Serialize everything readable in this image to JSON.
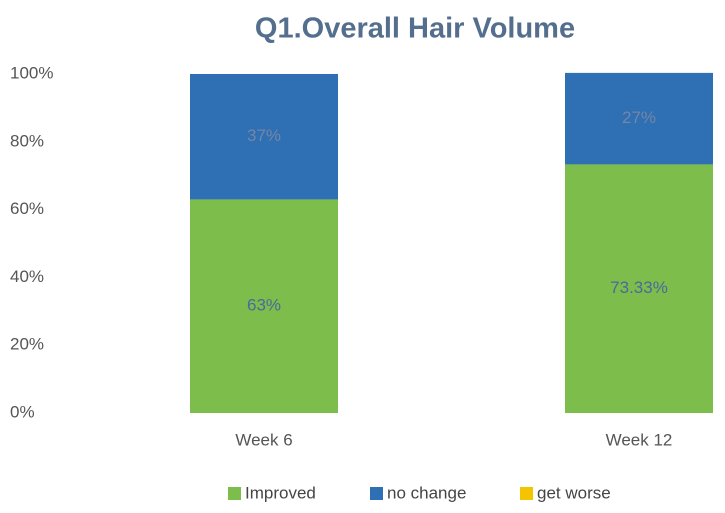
{
  "chart_data": {
    "type": "stacked_bar",
    "title": "Q1.Overall Hair Volume",
    "categories": [
      "Week 6",
      "Week 12"
    ],
    "series": [
      {
        "name": "Improved",
        "color": "#7cbd4c",
        "values": [
          63,
          73.33
        ],
        "value_labels": [
          "63%",
          "73.33%"
        ]
      },
      {
        "name": "no change",
        "color": "#2f6fb3",
        "values": [
          37,
          27
        ],
        "value_labels": [
          "37%",
          "27%"
        ]
      },
      {
        "name": "get worse",
        "color": "#f5c400",
        "values": [
          0,
          0
        ]
      }
    ],
    "ylim": [
      0,
      100
    ],
    "yticks": [
      {
        "value": 0,
        "label": "0%"
      },
      {
        "value": 20,
        "label": "20%"
      },
      {
        "value": 40,
        "label": "40%"
      },
      {
        "value": 60,
        "label": "60%"
      },
      {
        "value": 80,
        "label": "80%"
      },
      {
        "value": 100,
        "label": "100%"
      }
    ],
    "grid": false,
    "legend": "bottom"
  }
}
